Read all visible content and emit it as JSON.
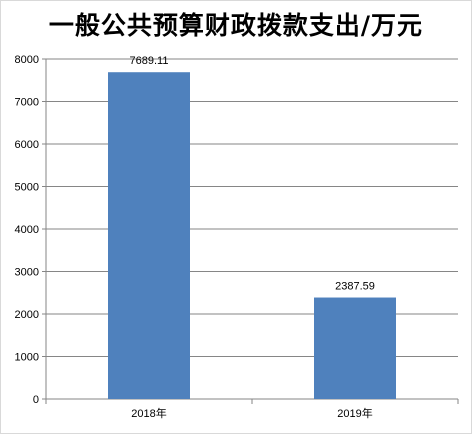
{
  "chart_data": {
    "type": "bar",
    "title": "一般公共预算财政拨款支出/万元",
    "categories": [
      "2018年",
      "2019年"
    ],
    "values": [
      7689.11,
      2387.59
    ],
    "data_labels": [
      "7689.11",
      "2387.59"
    ],
    "ylim": [
      0,
      8000
    ],
    "yticks": [
      0,
      1000,
      2000,
      3000,
      4000,
      5000,
      6000,
      7000,
      8000
    ],
    "xlabel": "",
    "ylabel": "",
    "grid": true,
    "legend": false,
    "bar_color": "#4f81bd",
    "grid_color": "#868686"
  }
}
